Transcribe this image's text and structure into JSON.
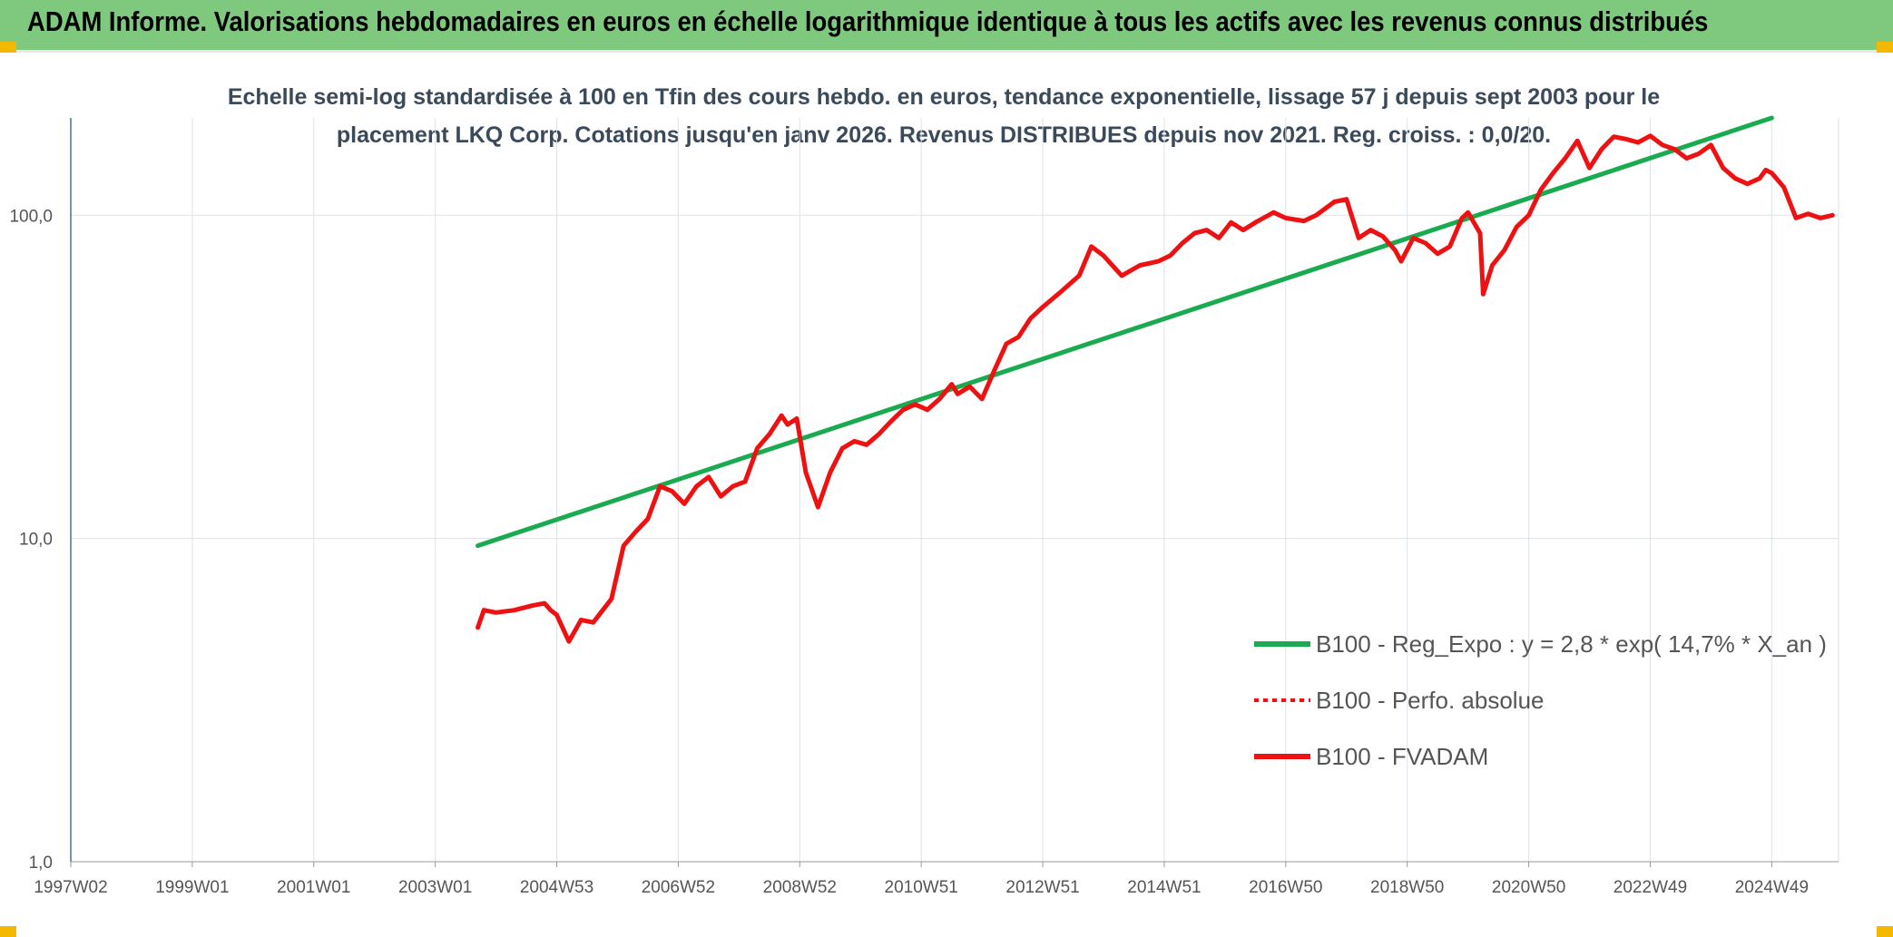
{
  "header": {
    "title": "ADAM Informe. Valorisations hebdomadaires en euros en échelle logarithmique identique à tous les actifs avec les revenus connus distribués"
  },
  "chart_data": {
    "type": "line",
    "title_line1": "Echelle semi-log standardisée à 100 en Tfin des cours hebdo. en euros, tendance exponentielle, lissage 57 j depuis sept 2003 pour le",
    "title_line2": "placement LKQ Corp. Cotations jusqu'en janv 2026. Revenus DISTRIBUES depuis nov 2021. Reg. croiss. : 0,0/20.",
    "y_scale": "log",
    "ylim": [
      1,
      200
    ],
    "xlim": [
      1997.0,
      2026.1
    ],
    "y_ticks": [
      {
        "value": 1,
        "label": "1,0"
      },
      {
        "value": 10,
        "label": "10,0"
      },
      {
        "value": 100,
        "label": "100,0"
      }
    ],
    "x_ticks": [
      {
        "value": 1997.0,
        "label": "1997W02"
      },
      {
        "value": 1999.0,
        "label": "1999W01"
      },
      {
        "value": 2001.0,
        "label": "2001W01"
      },
      {
        "value": 2003.0,
        "label": "2003W01"
      },
      {
        "value": 2005.0,
        "label": "2004W53"
      },
      {
        "value": 2007.0,
        "label": "2006W52"
      },
      {
        "value": 2009.0,
        "label": "2008W52"
      },
      {
        "value": 2011.0,
        "label": "2010W51"
      },
      {
        "value": 2013.0,
        "label": "2012W51"
      },
      {
        "value": 2015.0,
        "label": "2014W51"
      },
      {
        "value": 2017.0,
        "label": "2016W50"
      },
      {
        "value": 2019.0,
        "label": "2018W50"
      },
      {
        "value": 2021.0,
        "label": "2020W50"
      },
      {
        "value": 2023.0,
        "label": "2022W49"
      },
      {
        "value": 2025.0,
        "label": "2024W49"
      }
    ],
    "grid": true,
    "legend_position": "lower-right",
    "series": [
      {
        "name": "B100 - Reg_Expo : y = 2,8 * exp( 14,7% *  X_an )",
        "color": "#1aaa50",
        "style": "solid",
        "x": [
          2003.7,
          2025.0
        ],
        "y": [
          9.5,
          200
        ]
      },
      {
        "name": "B100 - Perfo. absolue",
        "color": "#ee1111",
        "style": "dotted",
        "x": [],
        "y": []
      },
      {
        "name": "B100 - FVADAM",
        "color": "#ee1111",
        "style": "solid",
        "x": [
          2003.7,
          2003.8,
          2004.0,
          2004.3,
          2004.6,
          2004.8,
          2004.9,
          2005.0,
          2005.2,
          2005.4,
          2005.6,
          2005.9,
          2006.1,
          2006.3,
          2006.5,
          2006.7,
          2006.9,
          2007.1,
          2007.3,
          2007.5,
          2007.7,
          2007.9,
          2008.1,
          2008.3,
          2008.5,
          2008.7,
          2008.8,
          2008.95,
          2009.1,
          2009.3,
          2009.5,
          2009.7,
          2009.9,
          2010.1,
          2010.3,
          2010.5,
          2010.7,
          2010.9,
          2011.1,
          2011.3,
          2011.5,
          2011.6,
          2011.8,
          2012.0,
          2012.2,
          2012.4,
          2012.6,
          2012.8,
          2013.0,
          2013.3,
          2013.6,
          2013.8,
          2014.0,
          2014.3,
          2014.6,
          2014.9,
          2015.1,
          2015.3,
          2015.5,
          2015.7,
          2015.9,
          2016.1,
          2016.3,
          2016.5,
          2016.8,
          2017.0,
          2017.3,
          2017.5,
          2017.8,
          2018.0,
          2018.2,
          2018.4,
          2018.6,
          2018.8,
          2018.9,
          2019.1,
          2019.3,
          2019.5,
          2019.7,
          2019.9,
          2020.0,
          2020.2,
          2020.25,
          2020.4,
          2020.6,
          2020.8,
          2021.0,
          2021.2,
          2021.4,
          2021.6,
          2021.8,
          2022.0,
          2022.2,
          2022.4,
          2022.6,
          2022.8,
          2023.0,
          2023.2,
          2023.4,
          2023.6,
          2023.8,
          2024.0,
          2024.2,
          2024.4,
          2024.6,
          2024.8,
          2024.9,
          2025.0,
          2025.2,
          2025.4,
          2025.6,
          2025.8,
          2026.0
        ],
        "y": [
          5.3,
          6.0,
          5.9,
          6.0,
          6.2,
          6.3,
          6.0,
          5.8,
          4.8,
          5.6,
          5.5,
          6.5,
          9.5,
          10.5,
          11.5,
          14.5,
          14.0,
          12.8,
          14.5,
          15.5,
          13.5,
          14.5,
          15.0,
          19.0,
          21.0,
          24.0,
          22.5,
          23.5,
          16.0,
          12.5,
          16.0,
          19.0,
          20.0,
          19.5,
          21.0,
          23.0,
          25.0,
          26.0,
          25.0,
          27.0,
          30.0,
          28.0,
          29.5,
          27.0,
          33.0,
          40.0,
          42.0,
          48.0,
          52.0,
          58.0,
          65.0,
          80.0,
          75.0,
          65.0,
          70.0,
          72.0,
          75.0,
          82.0,
          88.0,
          90.0,
          85.0,
          95.0,
          90.0,
          95.0,
          102.0,
          98.0,
          96.0,
          100.0,
          110.0,
          112.0,
          85.0,
          90.0,
          86.0,
          78.0,
          72.0,
          85.0,
          82.0,
          76.0,
          80.0,
          98.0,
          102.0,
          88.0,
          57.0,
          70.0,
          78.0,
          92.0,
          100.0,
          120.0,
          135.0,
          150.0,
          170.0,
          140.0,
          160.0,
          175.0,
          172.0,
          168.0,
          176.0,
          165.0,
          160.0,
          150.0,
          155.0,
          165.0,
          140.0,
          130.0,
          125.0,
          130.0,
          138.0,
          135.0,
          122.0,
          98.0,
          101.0,
          98.0,
          100.0
        ]
      }
    ]
  }
}
